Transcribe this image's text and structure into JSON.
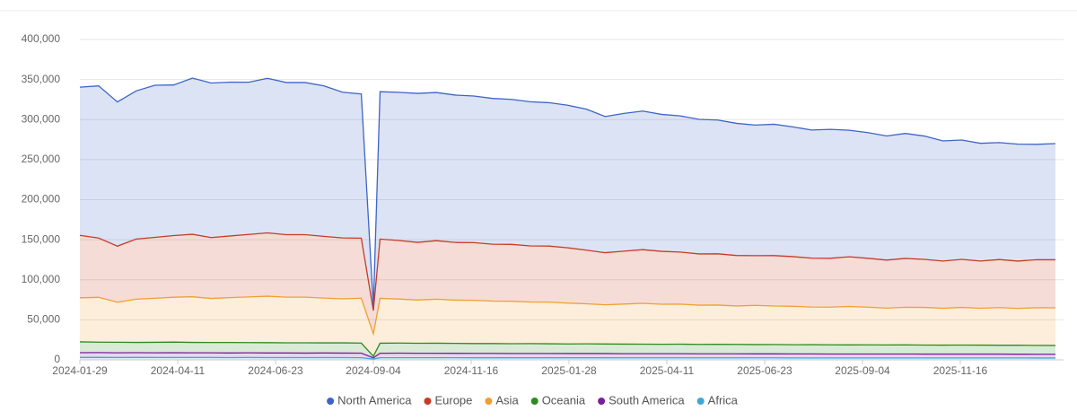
{
  "chart_data": {
    "type": "area",
    "stacked": true,
    "grid": true,
    "legend": "bottom",
    "x": [
      "2024-01-29",
      "2024-02-12",
      "2024-02-26",
      "2024-03-11",
      "2024-03-25",
      "2024-04-08",
      "2024-04-22",
      "2024-05-06",
      "2024-05-20",
      "2024-06-03",
      "2024-06-17",
      "2024-07-01",
      "2024-07-15",
      "2024-07-29",
      "2024-08-12",
      "2024-08-26",
      "2024-09-04",
      "2024-09-09",
      "2024-09-23",
      "2024-10-07",
      "2024-10-21",
      "2024-11-04",
      "2024-11-18",
      "2024-12-02",
      "2024-12-16",
      "2024-12-30",
      "2025-01-13",
      "2025-01-27",
      "2025-02-10",
      "2025-02-24",
      "2025-03-10",
      "2025-03-24",
      "2025-04-07",
      "2025-04-21",
      "2025-05-05",
      "2025-05-19",
      "2025-06-02",
      "2025-06-16",
      "2025-06-30",
      "2025-07-14",
      "2025-07-28",
      "2025-08-11",
      "2025-08-25",
      "2025-09-08",
      "2025-09-22",
      "2025-10-06",
      "2025-10-20",
      "2025-11-03",
      "2025-11-17",
      "2025-12-01",
      "2025-12-15",
      "2025-12-29",
      "2026-01-12",
      "2026-01-26"
    ],
    "xlim": [
      "2024-01-29",
      "2026-01-26"
    ],
    "xticks": [
      "2024-01-29",
      "2024-04-11",
      "2024-06-23",
      "2024-09-04",
      "2024-11-16",
      "2025-01-28",
      "2025-04-11",
      "2025-06-23",
      "2025-09-04",
      "2025-11-16"
    ],
    "ylim": [
      0,
      400000
    ],
    "yticks": [
      0,
      {
        "value": 50000,
        "label": "50,000"
      },
      {
        "value": 100000,
        "label": "100,000"
      },
      {
        "value": 150000,
        "label": "150,000"
      },
      {
        "value": 200000,
        "label": "200,000"
      },
      {
        "value": 250000,
        "label": "250,000"
      },
      {
        "value": 300000,
        "label": "300,000"
      },
      {
        "value": 350000,
        "label": "350,000"
      },
      {
        "value": 400000,
        "label": "400,000"
      }
    ],
    "series": [
      {
        "name": "Africa",
        "color": "#3fa7d6",
        "values": [
          3000,
          3000,
          2900,
          3000,
          2900,
          2900,
          2900,
          2900,
          2800,
          2900,
          2800,
          2800,
          2800,
          2800,
          2800,
          2700,
          1000,
          2700,
          2700,
          2700,
          2700,
          2700,
          2600,
          2600,
          2600,
          2600,
          2600,
          2600,
          2600,
          2600,
          2500,
          2500,
          2500,
          2500,
          2500,
          2500,
          2500,
          2500,
          2500,
          2400,
          2400,
          2400,
          2400,
          2400,
          2400,
          2400,
          2400,
          2400,
          2400,
          2400,
          2400,
          2400,
          2300,
          2300
        ]
      },
      {
        "name": "South America",
        "color": "#7b1f9a",
        "values": [
          6000,
          6100,
          5900,
          6000,
          5900,
          6000,
          5900,
          5900,
          5800,
          5900,
          5800,
          5800,
          5700,
          5800,
          5700,
          5700,
          1500,
          5600,
          5700,
          5600,
          5600,
          5500,
          5500,
          5500,
          5400,
          5400,
          5400,
          5300,
          5300,
          5300,
          5200,
          5200,
          5200,
          5200,
          5100,
          5100,
          5100,
          5000,
          5000,
          5000,
          5000,
          4900,
          4900,
          4900,
          4900,
          4900,
          4800,
          4800,
          4800,
          4800,
          4800,
          4700,
          4700,
          4700
        ]
      },
      {
        "name": "Oceania",
        "color": "#2e8b22",
        "values": [
          13500,
          13000,
          13200,
          12800,
          13100,
          13300,
          13000,
          12900,
          13100,
          12800,
          12900,
          12700,
          12800,
          12600,
          12700,
          12600,
          2000,
          12500,
          12600,
          12400,
          12500,
          12400,
          12300,
          12300,
          12200,
          12300,
          12100,
          12000,
          12100,
          11900,
          12000,
          11900,
          11800,
          11900,
          11700,
          11800,
          11700,
          11600,
          11700,
          11500,
          11600,
          11500,
          11400,
          11500,
          11300,
          11400,
          11300,
          11200,
          11300,
          11200,
          11100,
          11200,
          11100,
          11000
        ]
      },
      {
        "name": "Asia",
        "color": "#f0a030",
        "values": [
          55000,
          56000,
          50000,
          54000,
          55000,
          56000,
          57000,
          55000,
          56000,
          57000,
          58000,
          57000,
          57000,
          56000,
          55000,
          56000,
          28000,
          56000,
          55000,
          54000,
          55000,
          54000,
          54000,
          53000,
          53000,
          52000,
          52000,
          51000,
          50000,
          49000,
          50000,
          51000,
          50000,
          50000,
          49000,
          49000,
          48000,
          49000,
          48000,
          48000,
          47000,
          47000,
          48000,
          47000,
          46000,
          47000,
          47000,
          46000,
          47000,
          46000,
          47000,
          46000,
          47000,
          47000
        ]
      },
      {
        "name": "Europe",
        "color": "#c63c24",
        "values": [
          78000,
          74000,
          70000,
          75000,
          76000,
          77000,
          78000,
          76000,
          77000,
          78000,
          79000,
          78000,
          78000,
          77000,
          76000,
          75000,
          29000,
          74000,
          73000,
          72000,
          73000,
          72000,
          72000,
          71000,
          71000,
          70000,
          70000,
          69000,
          67000,
          65000,
          66000,
          67000,
          66000,
          65000,
          64000,
          64000,
          63000,
          62000,
          63000,
          62000,
          61000,
          61000,
          62000,
          61000,
          60000,
          61000,
          60000,
          59000,
          60000,
          59000,
          60000,
          59000,
          60000,
          60000
        ]
      },
      {
        "name": "North America",
        "color": "#3d64c8",
        "values": [
          185000,
          190000,
          180000,
          185000,
          190000,
          188000,
          195000,
          193000,
          192000,
          190000,
          193000,
          190000,
          190000,
          188000,
          182000,
          180000,
          5000,
          184000,
          185000,
          186000,
          185000,
          184000,
          183000,
          182000,
          181000,
          180000,
          179000,
          178000,
          176000,
          170000,
          172000,
          173000,
          171000,
          170000,
          168000,
          167000,
          165000,
          163000,
          164000,
          162000,
          160000,
          161000,
          158000,
          157000,
          155000,
          156000,
          154000,
          150000,
          149000,
          147000,
          146000,
          146000,
          144000,
          145000
        ]
      }
    ]
  }
}
